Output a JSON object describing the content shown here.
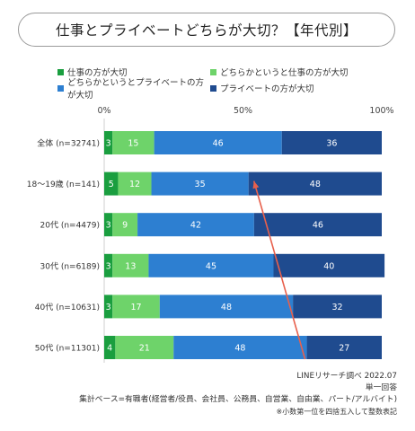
{
  "title": "仕事とプライベートどちらが大切？【年代別】",
  "legend": [
    {
      "label": "仕事の方が大切",
      "color": "#1a9e3f"
    },
    {
      "label": "どちらかというと仕事の方が大切",
      "color": "#6ed36a"
    },
    {
      "label": "どちらかというとプライベートの方が大切",
      "color": "#2d7fd1"
    },
    {
      "label": "プライベートの方が大切",
      "color": "#1f4b8f"
    }
  ],
  "chart_data": {
    "type": "bar",
    "orientation": "horizontal",
    "stacked": true,
    "categories": [
      "全体 (n=32741)",
      "18〜19歳 (n=141)",
      "20代 (n=4479)",
      "30代 (n=6189)",
      "40代 (n=10631)",
      "50代 (n=11301)"
    ],
    "series": [
      {
        "name": "仕事の方が大切",
        "color": "#1a9e3f",
        "values": [
          3,
          5,
          3,
          3,
          3,
          4
        ]
      },
      {
        "name": "どちらかというと仕事の方が大切",
        "color": "#6ed36a",
        "values": [
          15,
          12,
          9,
          13,
          17,
          21
        ]
      },
      {
        "name": "どちらかというとプライベートの方が大切",
        "color": "#2d7fd1",
        "values": [
          46,
          35,
          42,
          45,
          48,
          48
        ]
      },
      {
        "name": "プライベートの方が大切",
        "color": "#1f4b8f",
        "values": [
          36,
          48,
          46,
          40,
          32,
          27
        ]
      }
    ],
    "x_ticks": [
      "0%",
      "50%",
      "100%"
    ],
    "xlim": [
      0,
      100
    ],
    "annotations": [
      {
        "type": "arrow",
        "from_category": "50代 (n=11301)",
        "to_category": "18〜19歳 (n=141)",
        "color": "#e8604c"
      }
    ]
  },
  "footer": {
    "source": "LINEリサーチ調べ 2022.07",
    "answer_type": "単一回答",
    "base": "集計ベース=有職者(経営者/役員、会社員、公務員、自営業、自由業、パート/アルバイト)",
    "note": "※小数第一位を四捨五入して整数表記"
  }
}
